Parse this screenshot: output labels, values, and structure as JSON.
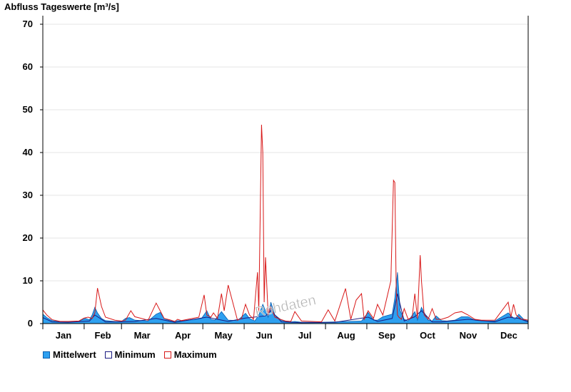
{
  "chart_data": {
    "type": "area",
    "title": "Abfluss Tageswerte [m³/s]",
    "ylim": [
      0,
      72
    ],
    "yticks": [
      0,
      10,
      20,
      30,
      40,
      50,
      60,
      70
    ],
    "months": [
      "Jan",
      "Feb",
      "Mar",
      "Apr",
      "May",
      "Jun",
      "Jul",
      "Aug",
      "Sep",
      "Oct",
      "Nov",
      "Dec"
    ],
    "grid": true,
    "legend_position": "bottom-left",
    "watermark": "Rohdaten",
    "colors": {
      "mean_fill": "#2ea0f0",
      "mean_edge": "#0a5fb0",
      "min": "#1a1a80",
      "max": "#d81818",
      "grid": "#e6e6e6"
    },
    "series": [
      {
        "name": "Mittelwert",
        "kind": "area",
        "x": [
          1,
          4,
          8,
          14,
          20,
          28,
          31,
          33,
          36,
          38,
          40,
          42,
          45,
          48,
          55,
          60,
          63,
          66,
          70,
          80,
          86,
          89,
          92,
          96,
          100,
          102,
          105,
          120,
          124,
          127,
          130,
          135,
          140,
          147,
          153,
          156,
          160,
          163,
          166,
          168,
          170,
          172,
          175,
          180,
          183,
          187,
          190,
          195,
          210,
          220,
          230,
          240,
          245,
          249,
          252,
          256,
          263,
          265,
          267,
          269,
          272,
          275,
          280,
          282,
          285,
          290,
          293,
          296,
          300,
          304,
          310,
          315,
          320,
          325,
          330,
          340,
          350,
          355,
          358,
          362,
          365
        ],
        "y": [
          2.2,
          1.4,
          0.7,
          0.4,
          0.4,
          0.5,
          1.0,
          1.2,
          0.9,
          2.0,
          3.8,
          2.5,
          1.2,
          0.7,
          0.5,
          0.5,
          1.2,
          1.4,
          0.8,
          0.6,
          2.2,
          2.6,
          1.2,
          0.7,
          0.4,
          0.7,
          0.6,
          1.2,
          3.0,
          1.0,
          0.8,
          2.8,
          0.8,
          0.7,
          2.4,
          1.2,
          0.6,
          2.0,
          4.5,
          3.0,
          1.5,
          5.0,
          2.0,
          0.8,
          0.5,
          0.4,
          0.5,
          0.3,
          0.3,
          0.4,
          0.5,
          0.6,
          2.6,
          0.8,
          0.8,
          1.6,
          2.2,
          6.0,
          12.0,
          3.0,
          1.0,
          0.6,
          2.8,
          0.8,
          3.8,
          0.8,
          0.6,
          1.8,
          0.7,
          0.6,
          0.8,
          1.6,
          1.6,
          0.8,
          0.6,
          0.6,
          2.5,
          1.0,
          2.2,
          0.9,
          0.6
        ]
      },
      {
        "name": "Minimum",
        "kind": "line",
        "x": [
          1,
          8,
          20,
          36,
          40,
          48,
          60,
          70,
          86,
          100,
          124,
          140,
          153,
          168,
          172,
          180,
          195,
          220,
          245,
          252,
          263,
          267,
          272,
          280,
          285,
          293,
          300,
          320,
          340,
          350,
          358,
          365
        ],
        "y": [
          1.4,
          0.4,
          0.3,
          0.6,
          2.0,
          0.4,
          0.4,
          0.5,
          1.2,
          0.3,
          1.5,
          0.5,
          1.3,
          1.8,
          3.0,
          0.4,
          0.2,
          0.3,
          1.5,
          0.5,
          1.2,
          7.0,
          0.6,
          1.6,
          3.0,
          0.4,
          0.4,
          1.0,
          0.4,
          1.5,
          1.2,
          0.4
        ]
      },
      {
        "name": "Maximum",
        "kind": "line",
        "x": [
          1,
          4,
          8,
          14,
          20,
          28,
          32,
          35,
          38,
          40,
          42,
          45,
          48,
          55,
          60,
          63,
          67,
          70,
          80,
          86,
          89,
          92,
          96,
          100,
          102,
          105,
          118,
          122,
          124,
          127,
          129,
          132,
          135,
          137,
          140,
          147,
          150,
          153,
          156,
          159,
          162,
          163,
          165,
          166,
          167,
          168,
          170,
          172,
          175,
          180,
          183,
          187,
          190,
          195,
          210,
          215,
          220,
          228,
          232,
          236,
          240,
          242,
          245,
          249,
          252,
          256,
          262,
          264,
          265,
          266,
          267,
          268,
          270,
          272,
          275,
          278,
          280,
          282,
          284,
          285,
          287,
          290,
          293,
          296,
          300,
          305,
          310,
          315,
          320,
          325,
          330,
          340,
          350,
          352,
          354,
          356,
          358,
          360,
          362,
          365
        ],
        "y": [
          3.2,
          2.0,
          0.9,
          0.5,
          0.5,
          0.6,
          1.3,
          1.5,
          1.2,
          2.5,
          8.3,
          4.0,
          1.5,
          0.8,
          0.6,
          0.8,
          3.0,
          1.6,
          0.8,
          4.8,
          3.0,
          1.2,
          0.9,
          0.5,
          1.0,
          0.7,
          1.5,
          6.7,
          2.0,
          1.5,
          2.5,
          1.2,
          7.0,
          3.0,
          9.0,
          0.8,
          1.2,
          4.5,
          2.0,
          1.0,
          12.0,
          3.0,
          46.5,
          40.0,
          5.0,
          15.5,
          2.0,
          4.0,
          1.5,
          0.9,
          0.6,
          0.5,
          2.8,
          0.6,
          0.4,
          3.2,
          0.6,
          8.2,
          1.0,
          5.5,
          7.0,
          1.0,
          3.0,
          1.2,
          4.5,
          2.0,
          10.0,
          33.5,
          33.0,
          8.0,
          2.0,
          1.5,
          1.0,
          3.5,
          1.0,
          1.5,
          7.0,
          1.2,
          16.0,
          10.0,
          2.0,
          1.0,
          3.5,
          1.0,
          1.0,
          1.5,
          2.5,
          2.8,
          2.0,
          1.0,
          0.8,
          0.8,
          5.0,
          1.5,
          4.5,
          2.0,
          1.5,
          1.0,
          1.0,
          0.8
        ]
      }
    ]
  }
}
